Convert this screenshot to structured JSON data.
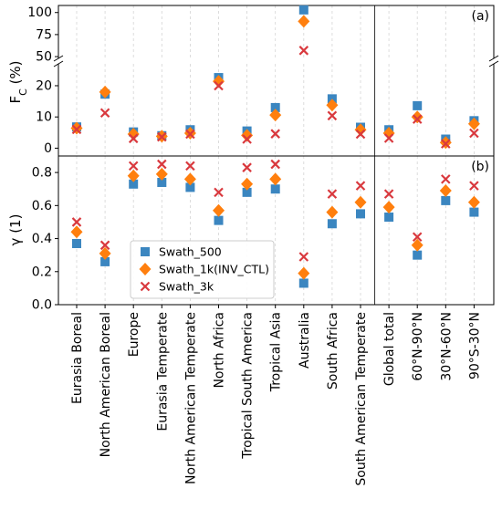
{
  "chart_data": {
    "type": "scatter",
    "categories": [
      "Eurasia Boreal",
      "North American Boreal",
      "Europe",
      "Eurasia Temperate",
      "North American Temperate",
      "North Africa",
      "Tropical South America",
      "Tropical Asia",
      "Australia",
      "South Africa",
      "South American Temperate",
      "Global total",
      "60°N-90°N",
      "30°N-60°N",
      "90°S-30°N"
    ],
    "legend": {
      "placement": "lower-left of panel (b)",
      "entries": [
        "Swath_500",
        "Swath_1k(INV_CTL)",
        "Swath_3k"
      ]
    },
    "series": [
      {
        "name": "Swath_500",
        "marker": "square",
        "color": "#3b86c0"
      },
      {
        "name": "Swath_1k(INV_CTL)",
        "marker": "diamond",
        "color": "#ff7f0e"
      },
      {
        "name": "Swath_3k",
        "marker": "x",
        "color": "#d9393e"
      }
    ],
    "panels": [
      {
        "id": "a",
        "panel_label": "(a)",
        "ylabel": "F",
        "ylabel_sub": "C",
        "ylabel_unit": " (%)",
        "broken_axis": true,
        "upper_segment": {
          "ylim": [
            48,
            108
          ],
          "ticks": [
            "50",
            "75",
            "100"
          ],
          "tick_values": [
            50,
            75,
            100
          ]
        },
        "lower_segment": {
          "ylim": [
            -2.5,
            27
          ],
          "ticks": [
            "0",
            "10",
            "20"
          ],
          "tick_values": [
            0,
            10,
            20
          ]
        },
        "values": {
          "Swath_500": [
            6.8,
            17.3,
            5.2,
            4.0,
            5.9,
            22.6,
            5.5,
            13.0,
            103.0,
            15.8,
            6.7,
            5.9,
            13.6,
            2.9,
            8.8
          ],
          "Swath_1k(INV_CTL)": [
            6.4,
            18.0,
            4.5,
            3.8,
            4.8,
            21.4,
            4.1,
            10.6,
            90.0,
            13.8,
            5.9,
            4.8,
            10.0,
            1.8,
            7.8
          ],
          "Swath_3k": [
            6.0,
            11.3,
            3.1,
            3.6,
            4.5,
            20.0,
            2.9,
            4.6,
            57.0,
            10.4,
            4.5,
            3.2,
            9.3,
            1.4,
            4.8
          ]
        }
      },
      {
        "id": "b",
        "panel_label": "(b)",
        "ylabel": "γ (1)",
        "ylim": [
          0.0,
          0.9
        ],
        "ticks": [
          "0.0",
          "0.2",
          "0.4",
          "0.6",
          "0.8"
        ],
        "tick_values": [
          0.0,
          0.2,
          0.4,
          0.6,
          0.8
        ],
        "values": {
          "Swath_500": [
            0.37,
            0.26,
            0.73,
            0.74,
            0.71,
            0.51,
            0.68,
            0.7,
            0.13,
            0.49,
            0.55,
            0.53,
            0.3,
            0.63,
            0.56
          ],
          "Swath_1k(INV_CTL)": [
            0.44,
            0.31,
            0.78,
            0.79,
            0.76,
            0.57,
            0.73,
            0.76,
            0.19,
            0.56,
            0.62,
            0.59,
            0.36,
            0.69,
            0.62
          ],
          "Swath_3k": [
            0.5,
            0.36,
            0.84,
            0.85,
            0.84,
            0.68,
            0.83,
            0.85,
            0.29,
            0.67,
            0.72,
            0.67,
            0.41,
            0.76,
            0.72
          ]
        }
      }
    ],
    "grid": "vertical dashed lines at categories",
    "separator_after_category": "South American Temperate"
  }
}
